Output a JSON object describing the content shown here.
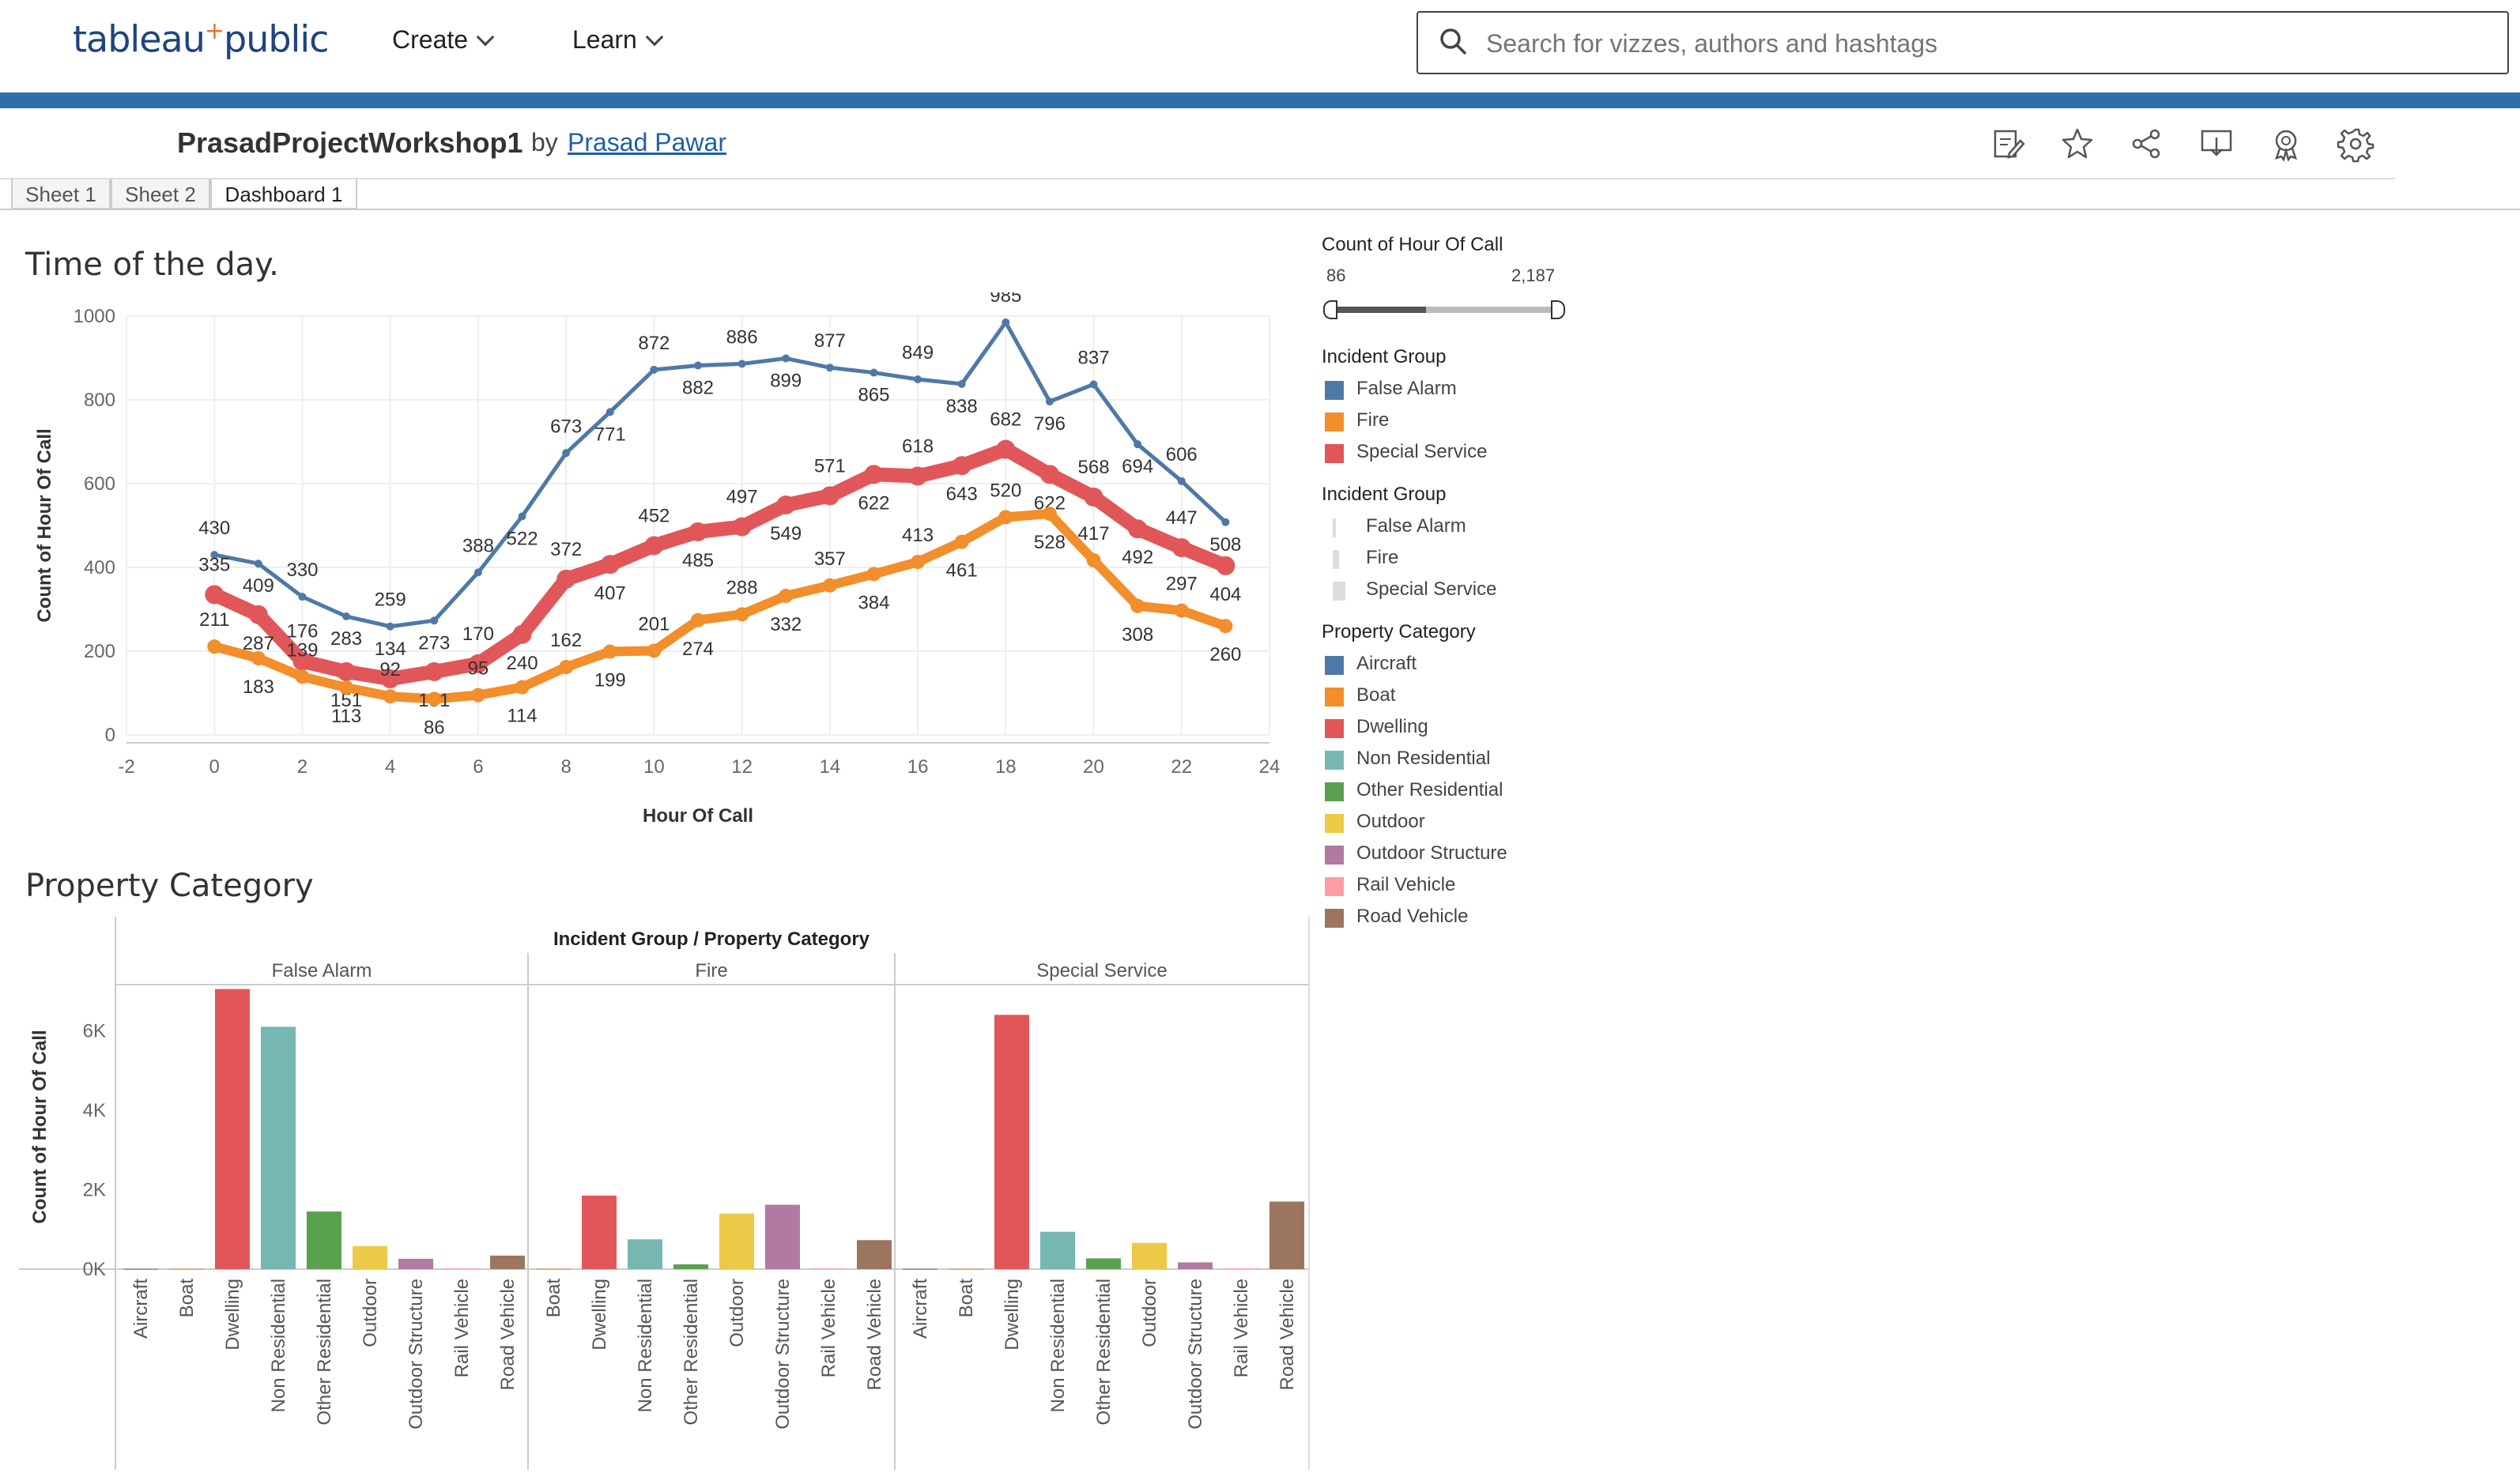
{
  "header": {
    "logo_text": "tableau",
    "logo_plus": "+",
    "logo_suffix": "public",
    "nav": [
      {
        "label": "Create"
      },
      {
        "label": "Learn"
      }
    ],
    "search_placeholder": "Search for vizzes, authors and hashtags"
  },
  "viz": {
    "title": "PrasadProjectWorkshop1",
    "by": "by",
    "author": "Prasad Pawar",
    "toolbar_icons": [
      "edit-icon",
      "star-icon",
      "share-icon",
      "download-icon",
      "badge-icon",
      "gear-icon"
    ]
  },
  "tabs": [
    {
      "label": "Sheet 1"
    },
    {
      "label": "Sheet 2"
    },
    {
      "label": "Dashboard 1",
      "active": true
    }
  ],
  "sections": {
    "time_title": "Time of the day.",
    "property_title": "Property Category"
  },
  "legend": {
    "slider_title": "Count of Hour Of Call",
    "slider_min": "86",
    "slider_max": "2,187",
    "incident_group_title": "Incident Group",
    "incident_groups": [
      {
        "label": "False Alarm",
        "color": "#4e79a7"
      },
      {
        "label": "Fire",
        "color": "#f28e2b"
      },
      {
        "label": "Special Service",
        "color": "#e15759"
      }
    ],
    "incident_group_size_title": "Incident Group",
    "incident_group_sizes": [
      {
        "label": "False Alarm"
      },
      {
        "label": "Fire"
      },
      {
        "label": "Special Service"
      }
    ],
    "property_title": "Property Category",
    "properties": [
      {
        "label": "Aircraft",
        "color": "#4e79a7"
      },
      {
        "label": "Boat",
        "color": "#f28e2b"
      },
      {
        "label": "Dwelling",
        "color": "#e15759"
      },
      {
        "label": "Non Residential",
        "color": "#76b7b2"
      },
      {
        "label": "Other Residential",
        "color": "#59a14f"
      },
      {
        "label": "Outdoor",
        "color": "#edc948"
      },
      {
        "label": "Outdoor Structure",
        "color": "#b07aa1"
      },
      {
        "label": "Rail Vehicle",
        "color": "#ff9da7"
      },
      {
        "label": "Road Vehicle",
        "color": "#9c755f"
      }
    ]
  },
  "chart_data": [
    {
      "type": "line",
      "title": "Time of the day.",
      "xlabel": "Hour Of Call",
      "ylabel": "Count of Hour Of Call",
      "xlim": [
        -2,
        24
      ],
      "ylim": [
        0,
        1000
      ],
      "x_ticks": [
        -2,
        0,
        2,
        4,
        6,
        8,
        10,
        12,
        14,
        16,
        18,
        20,
        22,
        24
      ],
      "y_ticks": [
        0,
        200,
        400,
        600,
        800,
        1000
      ],
      "x": [
        0,
        1,
        2,
        3,
        4,
        5,
        6,
        7,
        8,
        9,
        10,
        11,
        12,
        13,
        14,
        15,
        16,
        17,
        18,
        19,
        20,
        21,
        22,
        23
      ],
      "series": [
        {
          "name": "False Alarm",
          "color": "#4e79a7",
          "values": [
            430,
            409,
            330,
            283,
            259,
            273,
            388,
            522,
            673,
            771,
            872,
            882,
            886,
            899,
            877,
            865,
            849,
            838,
            985,
            796,
            837,
            694,
            606,
            508
          ]
        },
        {
          "name": "Special Service",
          "color": "#e15759",
          "values": [
            335,
            287,
            176,
            151,
            134,
            151,
            170,
            240,
            372,
            407,
            452,
            485,
            497,
            549,
            571,
            622,
            618,
            643,
            682,
            622,
            568,
            492,
            447,
            404
          ]
        },
        {
          "name": "Fire",
          "color": "#f28e2b",
          "values": [
            211,
            183,
            139,
            113,
            92,
            86,
            95,
            114,
            162,
            199,
            201,
            274,
            288,
            332,
            357,
            384,
            413,
            461,
            520,
            528,
            417,
            308,
            297,
            260
          ]
        }
      ],
      "grid": true
    },
    {
      "type": "bar",
      "title": "Property Category",
      "header": "Incident Group / Property Category",
      "ylabel": "Count of Hour Of Call",
      "ylim": [
        0,
        7200
      ],
      "y_ticks": [
        {
          "v": 0,
          "label": "0K"
        },
        {
          "v": 2000,
          "label": "2K"
        },
        {
          "v": 4000,
          "label": "4K"
        },
        {
          "v": 6000,
          "label": "6K"
        }
      ],
      "panels": [
        {
          "name": "False Alarm",
          "categories": [
            "Aircraft",
            "Boat",
            "Dwelling",
            "Non Residential",
            "Other Residential",
            "Outdoor",
            "Outdoor Structure",
            "Rail Vehicle",
            "Road Vehicle"
          ],
          "values": [
            8,
            10,
            7050,
            6100,
            1450,
            580,
            260,
            15,
            340
          ]
        },
        {
          "name": "Fire",
          "categories": [
            "Boat",
            "Dwelling",
            "Non Residential",
            "Other Residential",
            "Outdoor",
            "Outdoor Structure",
            "Rail Vehicle",
            "Road Vehicle"
          ],
          "values": [
            10,
            1850,
            750,
            120,
            1400,
            1620,
            15,
            730
          ]
        },
        {
          "name": "Special Service",
          "categories": [
            "Aircraft",
            "Boat",
            "Dwelling",
            "Non Residential",
            "Other Residential",
            "Outdoor",
            "Outdoor Structure",
            "Rail Vehicle",
            "Road Vehicle"
          ],
          "values": [
            8,
            10,
            6400,
            940,
            270,
            660,
            170,
            20,
            1700
          ]
        }
      ]
    }
  ]
}
